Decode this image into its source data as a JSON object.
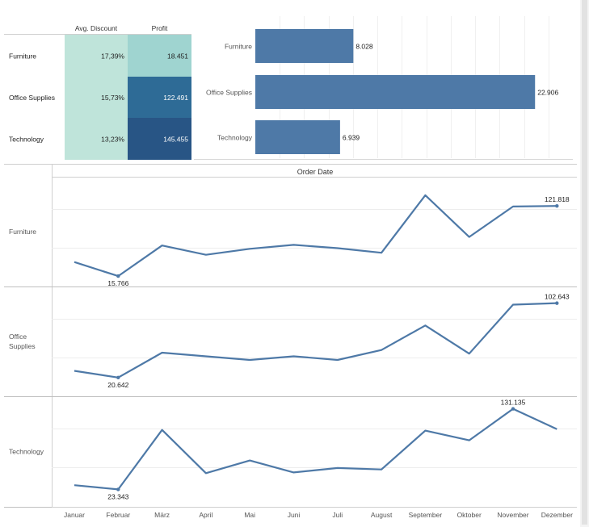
{
  "chart_data": [
    {
      "type": "table",
      "columns": [
        "Avg. Discount",
        "Profit"
      ],
      "rows": [
        {
          "category": "Furniture",
          "avg_discount": "17,39%",
          "profit": "18.451",
          "profit_value": 18451
        },
        {
          "category": "Office Supplies",
          "avg_discount": "15,73%",
          "profit": "122.491",
          "profit_value": 122491
        },
        {
          "category": "Technology",
          "avg_discount": "13,23%",
          "profit": "145.455",
          "profit_value": 145455
        }
      ],
      "colors": {
        "discount_cell": "#bfe4da",
        "profit_low": "#9fd4d0",
        "profit_mid": "#2e6b96",
        "profit_high": "#285585"
      }
    },
    {
      "type": "bar",
      "orientation": "horizontal",
      "categories": [
        "Furniture",
        "Office Supplies",
        "Technology"
      ],
      "values": [
        8028,
        22906,
        6939
      ],
      "labels": [
        "8.028",
        "22.906",
        "6.939"
      ],
      "xlim": [
        0,
        26000
      ],
      "color": "#4e79a7",
      "grid": true
    },
    {
      "type": "line",
      "title": "Order Date",
      "x": [
        "Januar",
        "Februar",
        "März",
        "April",
        "Mai",
        "Juni",
        "Juli",
        "August",
        "September",
        "Oktober",
        "November",
        "Dezember"
      ],
      "color": "#4e79a7",
      "series": [
        {
          "name": "Furniture",
          "values": [
            37000,
            15766,
            62000,
            48000,
            57000,
            63000,
            58000,
            51000,
            138000,
            75000,
            121000,
            121818
          ],
          "ylim": [
            0,
            166000
          ],
          "labels": [
            {
              "index": 1,
              "text": "15.766",
              "pos": "below"
            },
            {
              "index": 11,
              "text": "121.818",
              "pos": "above"
            }
          ]
        },
        {
          "name": "Office Supplies",
          "values": [
            28000,
            20642,
            48000,
            44000,
            40000,
            44000,
            40000,
            51000,
            78000,
            47000,
            101000,
            102643
          ],
          "ylim": [
            0,
            121000
          ],
          "labels": [
            {
              "index": 1,
              "text": "20.642",
              "pos": "below"
            },
            {
              "index": 11,
              "text": "102.643",
              "pos": "above"
            }
          ]
        },
        {
          "name": "Technology",
          "values": [
            29000,
            23343,
            103000,
            45000,
            62000,
            46000,
            52000,
            50000,
            102000,
            89000,
            131135,
            104000
          ],
          "ylim": [
            0,
            148000
          ],
          "labels": [
            {
              "index": 1,
              "text": "23.343",
              "pos": "below"
            },
            {
              "index": 10,
              "text": "131.135",
              "pos": "above"
            }
          ]
        }
      ]
    }
  ]
}
